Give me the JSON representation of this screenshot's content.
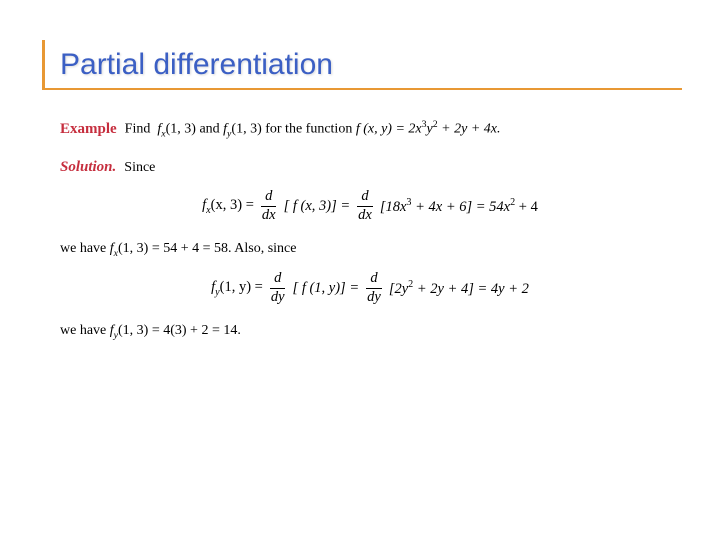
{
  "colors": {
    "title": "#3b5fc4",
    "accent": "#e89834",
    "emph": "#c62e3e",
    "text": "#000000",
    "bg": "#ffffff"
  },
  "typography": {
    "title_fontsize": 30,
    "body_fontsize": 14,
    "title_family": "Arial",
    "body_family": "Georgia"
  },
  "title": "Partial differentiation",
  "example_label": "Example",
  "solution_label": "Solution.",
  "prompt": {
    "pre": "Find",
    "fx": "f",
    "fx_sub": "x",
    "fx_arg": "(1, 3)",
    "and": " and ",
    "fy": "f",
    "fy_sub": "y",
    "fy_arg": "(1, 3)",
    "mid": " for the function ",
    "fn_lhs": "f (x, y) = 2x",
    "fn_e1": "3",
    "fn_m1": "y",
    "fn_e2": "2",
    "fn_tail": " + 2y + 4x."
  },
  "since": "Since",
  "eq1": {
    "l1": "f",
    "l1_sub": "x",
    "l1_arg": "(x, 3) = ",
    "d1_num": "d",
    "d1_den": "dx",
    "br1": "[ f (x, 3)] = ",
    "d2_num": "d",
    "d2_den": "dx",
    "br2_a": "[18x",
    "br2_e": "3",
    "br2_b": " + 4x + 6] = 54x",
    "br2_e2": "2",
    "br2_c": " + 4"
  },
  "line3": {
    "pre": "we have ",
    "f": "f",
    "f_sub": "x",
    "rest": "(1, 3) = 54 + 4 = 58. Also, since"
  },
  "eq2": {
    "l1": "f",
    "l1_sub": "y",
    "l1_arg": "(1, y) = ",
    "d1_num": "d",
    "d1_den": "dy",
    "br1": "[ f (1, y)] = ",
    "d2_num": "d",
    "d2_den": "dy",
    "br2_a": "[2y",
    "br2_e": "2",
    "br2_b": " + 2y + 4] = 4y + 2"
  },
  "line4": {
    "pre": "we have ",
    "f": "f",
    "f_sub": "y",
    "rest": "(1, 3) = 4(3) + 2 = 14."
  }
}
